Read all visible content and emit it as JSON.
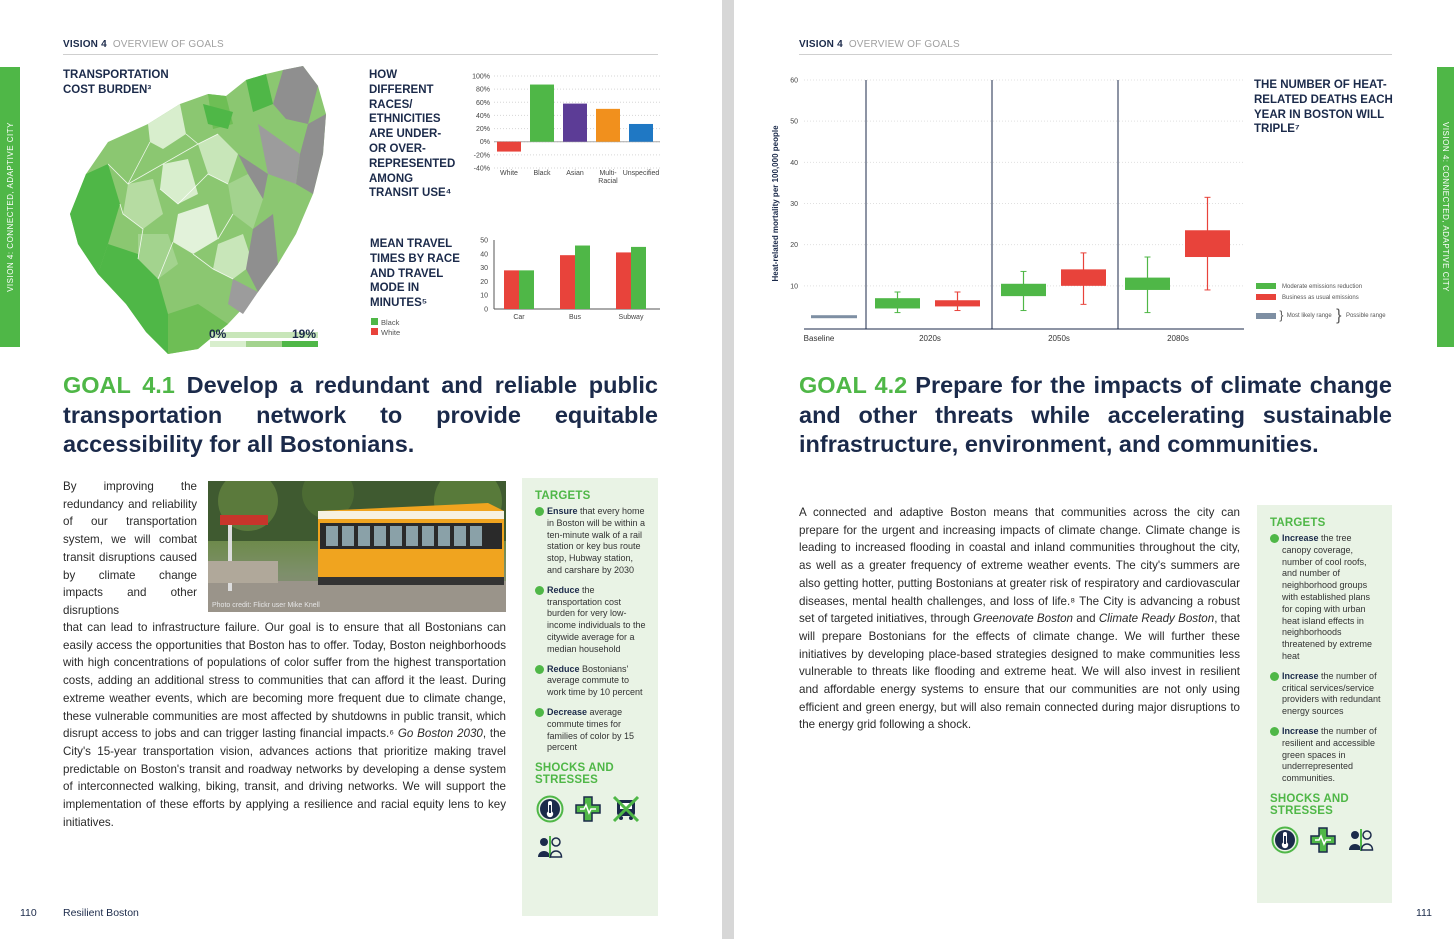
{
  "left_page": {
    "header": {
      "vision": "VISION 4",
      "section": "OVERVIEW OF GOALS"
    },
    "side_tab": "VISION 4: CONNECTED, ADAPTIVE CITY",
    "map": {
      "title": "TRANSPORTATION COST BURDEN³",
      "legend_min": "0%",
      "legend_max": "19%"
    },
    "goal": {
      "number": "GOAL 4.1",
      "title": "Develop a redundant and reliable public transportation network to provide equitable accessibility for all Bostonians."
    },
    "photo_credit": "Photo credit: Flickr user Mike Knell",
    "body_intro": "By improving the redundancy and reliability of our transportation system, we will combat transit disruptions caused by climate change impacts and other disruptions",
    "body_main": "that can lead to infrastructure failure. Our goal is to ensure that all Bostonians can easily access the opportunities that Boston has to offer. Today, Boston neighborhoods with high concentrations of populations of color suffer from the highest transportation costs, adding an additional stress to communities that can afford it the least. During extreme weather events, which are becoming more frequent due to climate change, these vulnerable communities are most affected by shutdowns in public transit, which disrupt access to jobs and can trigger lasting financial impacts.⁶",
    "body_plan": "Go Boston 2030",
    "body_end": ", the City's 15-year transportation vision, advances actions that prioritize making travel predictable on Boston's transit and roadway networks by developing a dense system of interconnected walking, biking, transit, and driving networks. We will support the implementation of these efforts by applying a resilience and racial equity lens to key initiatives.",
    "targets_title": "TARGETS",
    "targets": [
      {
        "lead": "Ensure",
        "text": " that every home in Boston will be within a ten-minute walk of a rail station or key bus route stop, Hubway station, and carshare by 2030"
      },
      {
        "lead": "Reduce",
        "text": " the transportation cost burden for very low-income individuals to the citywide average for a median household"
      },
      {
        "lead": "Reduce",
        "text": " Bostonians' average commute to work time by 10 percent"
      },
      {
        "lead": "Decrease",
        "text": " average commute times for families of color by 15 percent"
      }
    ],
    "shocks_title": "SHOCKS AND STRESSES",
    "icons": [
      "thermometer-icon",
      "health-cross-icon",
      "transit-disruption-icon",
      "racial-equity-icon"
    ],
    "footer": {
      "page": "110",
      "title": "Resilient Boston"
    }
  },
  "right_page": {
    "header": {
      "vision": "VISION 4",
      "section": "OVERVIEW OF GOALS"
    },
    "side_tab": "VISION 4: CONNECTED, ADAPTIVE CITY",
    "heat_title": "THE NUMBER OF HEAT-RELATED DEATHS EACH YEAR IN BOSTON WILL TRIPLE⁷",
    "goal": {
      "number": "GOAL 4.2",
      "title": "Prepare for the impacts of climate change and other threats while accelerating sustainable infrastructure, environment, and communities."
    },
    "body_a": "A connected and adaptive Boston means that communities across the city can prepare for the urgent and increasing impacts of climate change. Climate change is leading to increased flooding in coastal and inland communities throughout the city, as well as a greater frequency of extreme weather events. The city's summers are also getting hotter, putting Bostonians at greater risk of respiratory and cardiovascular diseases, mental health challenges, and loss of life.⁸ The City is advancing a robust set of targeted initiatives, through ",
    "body_plan1": "Greenovate Boston",
    "body_and": " and ",
    "body_plan2": "Climate Ready Boston",
    "body_b": ", that will prepare Bostonians for the effects of climate change. We will further these initiatives by developing place-based strategies designed to make communities less vulnerable to threats like flooding and extreme heat. We will also invest in resilient and affordable energy systems to ensure that our communities are not only using efficient and green energy, but will also remain connected during major disruptions to the energy grid following a shock.",
    "targets_title": "TARGETS",
    "targets": [
      {
        "lead": "Increase",
        "text": " the tree canopy coverage, number of cool roofs, and number of neighborhood groups with established plans for coping with urban heat island effects in neighborhoods threatened by extreme heat"
      },
      {
        "lead": "Increase",
        "text": " the number of critical services/service providers with redundant energy sources"
      },
      {
        "lead": "Increase",
        "text": " the number of resilient and accessible green spaces in underrepresented communities."
      }
    ],
    "shocks_title": "SHOCKS AND STRESSES",
    "icons": [
      "thermometer-icon",
      "health-cross-icon",
      "racial-equity-icon"
    ],
    "footer": {
      "page": "111"
    }
  },
  "chart_data": [
    {
      "type": "bar",
      "title": "HOW DIFFERENT RACES/ ETHNICITIES ARE UNDER- OR OVER- REPRESENTED AMONG TRANSIT USE⁴",
      "categories": [
        "White",
        "Black",
        "Asian",
        "Multi-Racial",
        "Unspecified"
      ],
      "values": [
        -15,
        87,
        58,
        50,
        27
      ],
      "colors": [
        "#e8433b",
        "#4fb747",
        "#5c3c96",
        "#f1901d",
        "#1f78c4"
      ],
      "yticks": [
        "100%",
        "80%",
        "60%",
        "40%",
        "20%",
        "0%",
        "-20%",
        "-40%"
      ],
      "ylim": [
        -40,
        100
      ]
    },
    {
      "type": "bar",
      "title": "MEAN TRAVEL TIMES BY RACE AND TRAVEL MODE IN MINUTES⁵",
      "categories": [
        "Car",
        "Bus",
        "Subway"
      ],
      "series": [
        {
          "name": "White",
          "color": "#e8433b",
          "values": [
            28,
            39,
            41
          ]
        },
        {
          "name": "Black",
          "color": "#4fb747",
          "values": [
            28,
            46,
            45
          ]
        }
      ],
      "yticks": [
        "0",
        "10",
        "20",
        "30",
        "40",
        "50"
      ],
      "ylim": [
        0,
        50
      ]
    },
    {
      "type": "box",
      "ylabel": "Heat-related mortality per 100,000 people",
      "yticks": [
        "10",
        "20",
        "30",
        "40",
        "50",
        "60"
      ],
      "ylim": [
        0,
        60
      ],
      "categories": [
        "Baseline",
        "2020s",
        "2050s",
        "2080s"
      ],
      "baseline": 2.5,
      "series": [
        {
          "name": "Moderate emissions reduction",
          "color": "#4fb747",
          "boxes": [
            [
              3.5,
              4.5,
              7,
              8.5
            ],
            [
              4,
              7.5,
              10.5,
              13.5
            ],
            [
              3.5,
              9,
              12,
              17
            ]
          ]
        },
        {
          "name": "Business as usual emissions",
          "color": "#e8433b",
          "boxes": [
            [
              4,
              5,
              6.5,
              8.5
            ],
            [
              5.5,
              10,
              14,
              18
            ],
            [
              9,
              17,
              23.5,
              31.5
            ]
          ]
        }
      ],
      "legend_ranges": [
        "Most likely range",
        "Possible range"
      ]
    }
  ]
}
